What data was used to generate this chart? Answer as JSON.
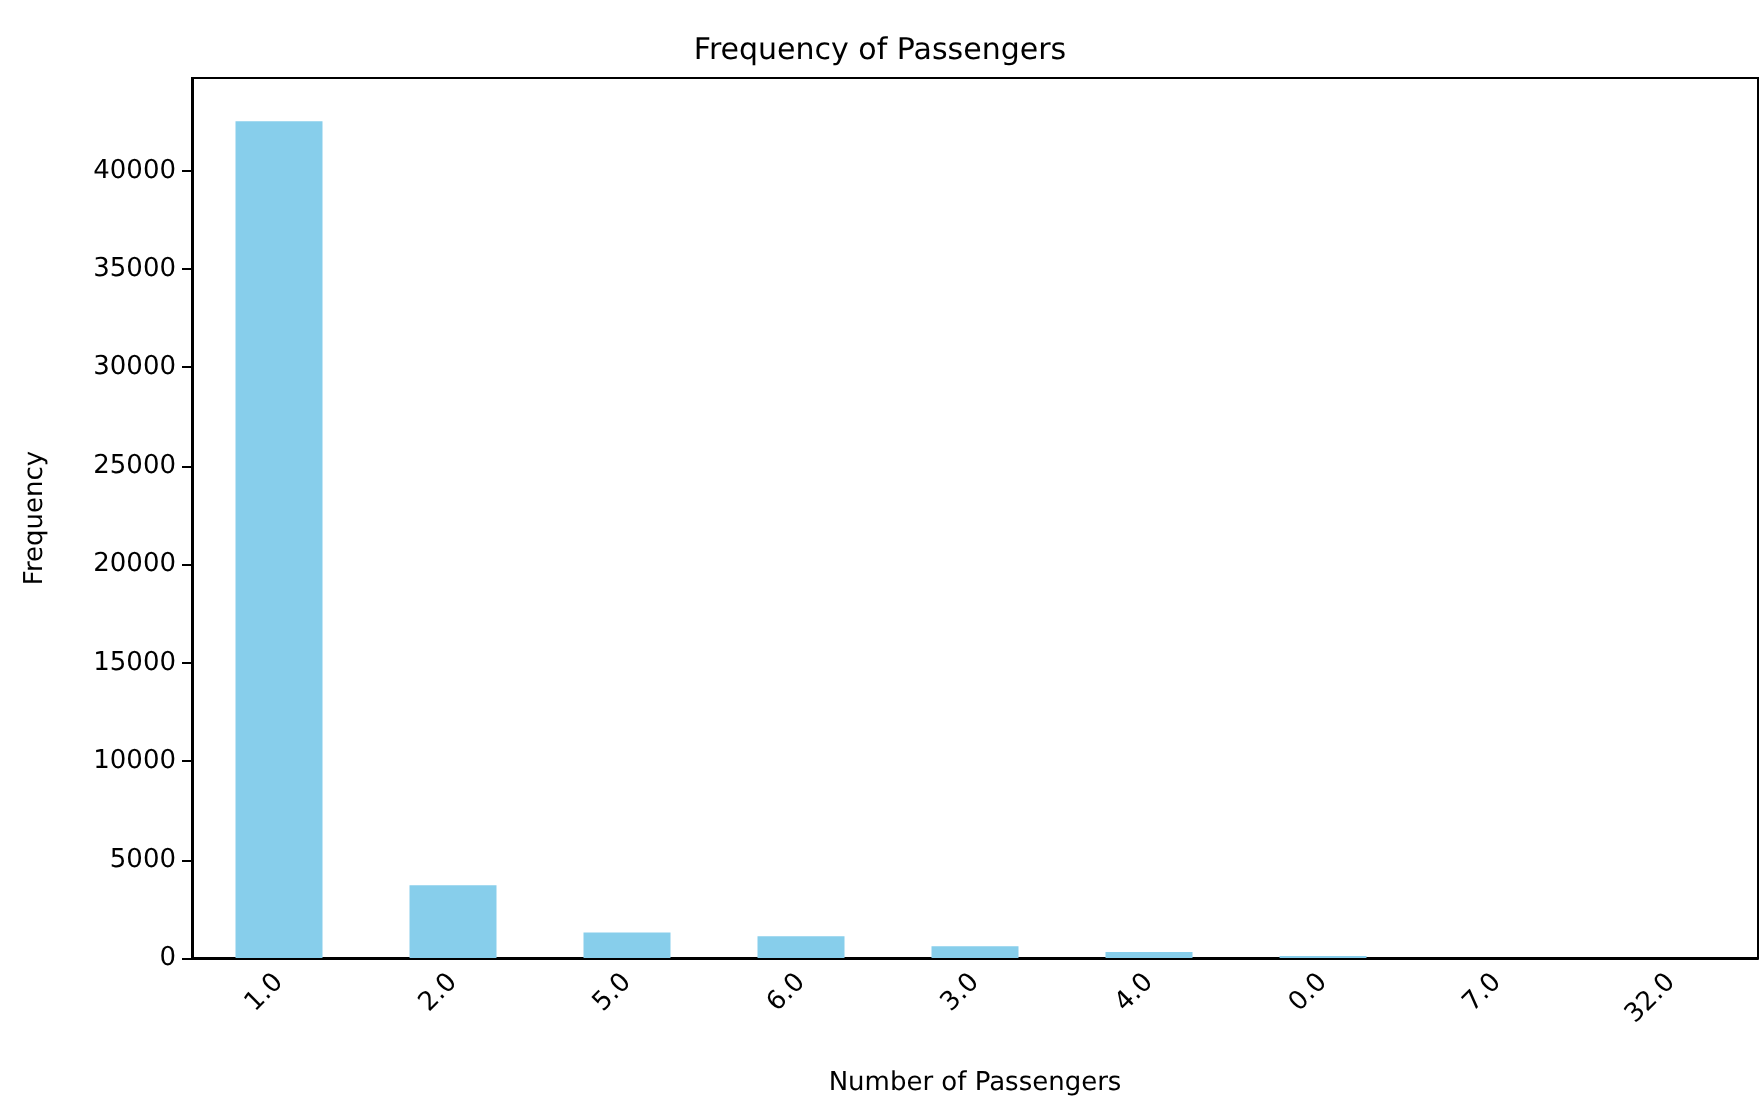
{
  "chart_data": {
    "type": "bar",
    "title": "Frequency of Passengers",
    "xlabel": "Number of Passengers",
    "ylabel": "Frequency",
    "categories": [
      "1.0",
      "2.0",
      "5.0",
      "6.0",
      "3.0",
      "4.0",
      "0.0",
      "7.0",
      "32.0"
    ],
    "values": [
      42500,
      3700,
      1300,
      1100,
      600,
      300,
      100,
      0,
      0
    ],
    "color": "#87ceeb",
    "ylim": [
      0,
      44700
    ],
    "yticks": [
      0,
      5000,
      10000,
      15000,
      20000,
      25000,
      30000,
      35000,
      40000
    ],
    "grid": false
  }
}
